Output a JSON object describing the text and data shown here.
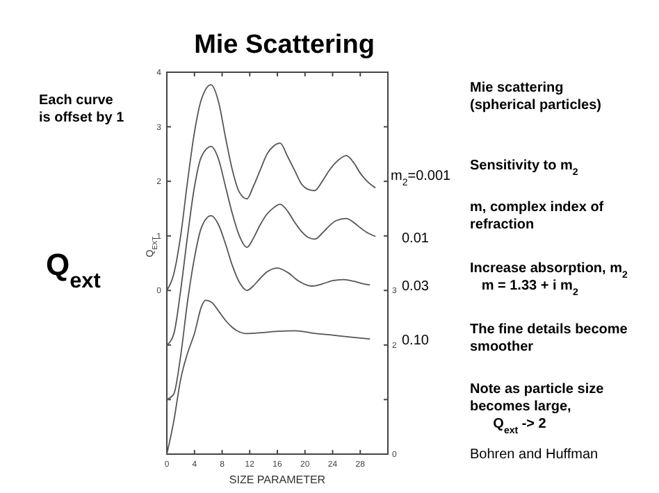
{
  "chart_data": {
    "type": "line",
    "title": "Mie Scattering",
    "xlabel": "SIZE PARAMETER",
    "ylabel": "Q$_{EXT}$",
    "xlim": [
      0,
      32
    ],
    "xticks": [
      0,
      4,
      8,
      12,
      16,
      20,
      24,
      28,
      {
        "value": 32,
        "label": null
      }
    ],
    "ylim": [
      -3,
      4
    ],
    "yticks": [
      {
        "value": -3,
        "label": null
      },
      {
        "value": -2,
        "label": null
      },
      {
        "value": -1,
        "label": null
      },
      0,
      1,
      2,
      3,
      4
    ],
    "y2lim": [
      0,
      7
    ],
    "y2ticks": [
      0,
      {
        "value": 1,
        "label": null
      },
      2,
      3,
      {
        "value": 4,
        "label": null
      },
      {
        "value": 5,
        "label": null
      },
      {
        "value": 6,
        "label": null
      },
      {
        "value": 7,
        "label": null
      }
    ],
    "grid": false,
    "marker": "none",
    "line_style": "solid",
    "series": [
      {
        "name": "m$_{2}$=0.001",
        "color": "#555555",
        "x": [
          0,
          1,
          2,
          3,
          4,
          5,
          6.4,
          7.5,
          8.5,
          9.5,
          10.5,
          11.6,
          12.5,
          13.5,
          14.5,
          15.5,
          16.4,
          17.5,
          18.5,
          19.5,
          20.5,
          21.4,
          22.5,
          23.5,
          24.5,
          26,
          27,
          28,
          29,
          30.2
        ],
        "values": [
          0,
          0.3,
          1.0,
          2.0,
          2.9,
          3.5,
          3.77,
          3.45,
          2.8,
          2.2,
          1.8,
          1.68,
          1.9,
          2.2,
          2.5,
          2.65,
          2.7,
          2.45,
          2.2,
          1.95,
          1.85,
          1.83,
          2.0,
          2.2,
          2.35,
          2.47,
          2.35,
          2.15,
          2.0,
          1.88
        ]
      },
      {
        "name": "0.01",
        "color": "#555555",
        "x": [
          0,
          1,
          2,
          3,
          4,
          5,
          6.4,
          7.5,
          8.5,
          9.5,
          10.5,
          11.6,
          12.5,
          13.5,
          14.5,
          15.5,
          16.4,
          17.5,
          18.5,
          19.5,
          20.5,
          21.4,
          22.5,
          23.5,
          24.5,
          26,
          27,
          28,
          29,
          30.2
        ],
        "values": [
          -1,
          -0.8,
          0,
          1.0,
          1.9,
          2.45,
          2.64,
          2.4,
          1.9,
          1.4,
          1.0,
          0.79,
          0.95,
          1.2,
          1.4,
          1.52,
          1.58,
          1.45,
          1.25,
          1.08,
          0.97,
          0.94,
          1.05,
          1.18,
          1.28,
          1.32,
          1.25,
          1.15,
          1.06,
          0.99
        ]
      },
      {
        "name": "0.03",
        "color": "#555555",
        "x": [
          0,
          1,
          2,
          3,
          4,
          5,
          6.4,
          7.5,
          8.5,
          9.5,
          10.5,
          11.6,
          12.5,
          13.5,
          14.5,
          16,
          17.5,
          19,
          21,
          22.5,
          24,
          25.6,
          27,
          28.5,
          29.4
        ],
        "values": [
          -2,
          -1.9,
          -1.2,
          -0.2,
          0.6,
          1.15,
          1.37,
          1.2,
          0.85,
          0.45,
          0.15,
          0,
          0.08,
          0.22,
          0.34,
          0.41,
          0.33,
          0.18,
          0.08,
          0.12,
          0.18,
          0.2,
          0.17,
          0.12,
          0.1
        ]
      },
      {
        "name": "0.10",
        "color": "#555555",
        "x": [
          0,
          1,
          2,
          3,
          4,
          5,
          5.6,
          6.5,
          7.5,
          8.5,
          9.5,
          10.5,
          11.4,
          14,
          16,
          18.6,
          21,
          24,
          27,
          29.4
        ],
        "values": [
          -3,
          -2.4,
          -1.63,
          -1.15,
          -0.79,
          -0.3,
          -0.18,
          -0.22,
          -0.38,
          -0.55,
          -0.68,
          -0.76,
          -0.79,
          -0.77,
          -0.75,
          -0.74,
          -0.78,
          -0.82,
          -0.86,
          -0.89
        ]
      }
    ],
    "annotations": [
      "Each curve\nis offset by 1",
      "Q$_{ext}$",
      "Mie scattering\n(spherical particles)",
      "Sensitivity to m$_{2}$",
      "m, complex index of\nrefraction",
      "Increase absorption, m$_{2}$\n   m = 1.33 + i m$_{2}$",
      "The fine details become\nsmoother",
      "Note as particle size\nbecomes large,\n      Q$_{ext}$ -> 2",
      "Bohren and Huffman"
    ]
  }
}
